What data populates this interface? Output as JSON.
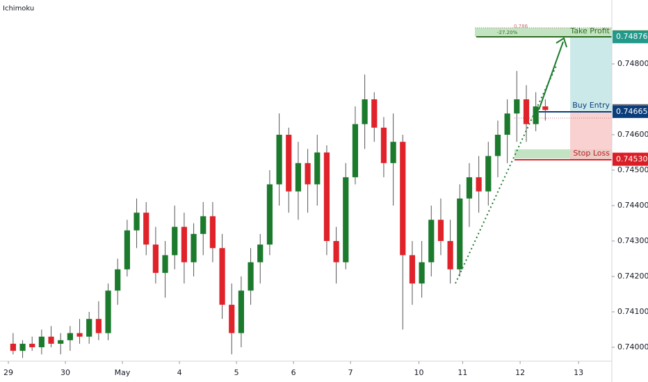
{
  "chart_data": {
    "type": "candlestick",
    "indicator": "Ichimoku",
    "up_color": "#1b7a2c",
    "down_color": "#e0232b",
    "xlim": [
      -0.88,
      63.5
    ],
    "ylim": [
      0.739608,
      0.749804
    ],
    "xticks": [
      {
        "value": 0,
        "label": "29"
      },
      {
        "value": 6,
        "label": "30"
      },
      {
        "value": 12,
        "label": "May"
      },
      {
        "value": 18,
        "label": "4"
      },
      {
        "value": 24,
        "label": "5"
      },
      {
        "value": 30,
        "label": "6"
      },
      {
        "value": 36,
        "label": "7"
      },
      {
        "value": 43.2,
        "label": "10"
      },
      {
        "value": 47.8,
        "label": "11"
      },
      {
        "value": 53.85,
        "label": "12"
      },
      {
        "value": 60,
        "label": "13"
      }
    ],
    "yticks": [
      {
        "value": 0.74,
        "label": "0.74000"
      },
      {
        "value": 0.741,
        "label": "0.74100"
      },
      {
        "value": 0.742,
        "label": "0.74200"
      },
      {
        "value": 0.743,
        "label": "0.74300"
      },
      {
        "value": 0.744,
        "label": "0.74400"
      },
      {
        "value": 0.745,
        "label": "0.74500"
      },
      {
        "value": 0.746,
        "label": "0.74600"
      },
      {
        "value": 0.748,
        "label": "0.74800"
      }
    ],
    "price_labels": [
      {
        "value": 0.74877,
        "label": "0.74877",
        "color": "#336e1f"
      },
      {
        "value": 0.74876,
        "label": "0.74876",
        "color": "#22998a"
      },
      {
        "value": 0.74669,
        "label": "0.74669",
        "color": "#787b86"
      },
      {
        "value": 0.74665,
        "label": "0.74665",
        "color": "#0a3d7a"
      },
      {
        "value": 0.74532,
        "label": "0.74532",
        "color": "#f23645"
      },
      {
        "value": 0.7453,
        "label": "0.74530",
        "color": "#d91e26"
      }
    ],
    "annotations": {
      "take_profit": "Take Profit",
      "buy_entry": "Buy Entry",
      "stop_loss": "Stop Loss",
      "fib_level": "0.786",
      "fib_percent": "-27.20%"
    },
    "x": [
      0.5,
      1.5,
      2.5,
      3.5,
      4.5,
      5.5,
      6.5,
      7.5,
      8.5,
      9.5,
      10.5,
      11.5,
      12.5,
      13.5,
      14.5,
      15.5,
      16.5,
      17.5,
      18.5,
      19.5,
      20.5,
      21.5,
      22.5,
      23.5,
      24.5,
      25.5,
      26.5,
      27.5,
      28.5,
      29.5,
      30.5,
      31.5,
      32.5,
      33.5,
      34.5,
      35.5,
      36.5,
      37.5,
      38.5,
      39.5,
      40.5,
      41.5,
      42.5,
      43.5,
      44.5,
      45.5,
      46.5,
      47.5,
      48.5,
      49.5,
      50.5,
      51.5,
      52.5,
      53.5,
      54.5,
      55.5,
      56.5
    ],
    "open": [
      0.7401,
      0.7399,
      0.7401,
      0.74,
      0.7403,
      0.7401,
      0.7402,
      0.7404,
      0.7403,
      0.7408,
      0.7404,
      0.7416,
      0.7422,
      0.7433,
      0.7438,
      0.7429,
      0.7421,
      0.7426,
      0.7434,
      0.7424,
      0.7432,
      0.7437,
      0.7428,
      0.7412,
      0.7404,
      0.7416,
      0.7424,
      0.7429,
      0.7446,
      0.746,
      0.7444,
      0.7452,
      0.7446,
      0.7455,
      0.743,
      0.7424,
      0.7448,
      0.7463,
      0.747,
      0.7462,
      0.7452,
      0.7458,
      0.7426,
      0.7418,
      0.7424,
      0.7436,
      0.743,
      0.7422,
      0.7442,
      0.7448,
      0.7444,
      0.7454,
      0.746,
      0.7466,
      0.747,
      0.7463,
      0.7468
    ],
    "high": [
      0.7404,
      0.7402,
      0.7403,
      0.7405,
      0.7406,
      0.7404,
      0.7406,
      0.7408,
      0.741,
      0.7413,
      0.7418,
      0.7425,
      0.7436,
      0.7442,
      0.7441,
      0.7434,
      0.743,
      0.744,
      0.7438,
      0.7435,
      0.7441,
      0.7441,
      0.7432,
      0.7418,
      0.742,
      0.7428,
      0.7432,
      0.745,
      0.7466,
      0.7462,
      0.7458,
      0.7456,
      0.746,
      0.7457,
      0.7434,
      0.7452,
      0.7468,
      0.7477,
      0.7472,
      0.7465,
      0.7466,
      0.746,
      0.743,
      0.743,
      0.744,
      0.7442,
      0.7436,
      0.7446,
      0.7452,
      0.7454,
      0.7458,
      0.7464,
      0.747,
      0.7478,
      0.7474,
      0.7472,
      0.747
    ],
    "low": [
      0.7398,
      0.7397,
      0.7399,
      0.7398,
      0.74,
      0.7398,
      0.7399,
      0.7401,
      0.7401,
      0.7402,
      0.7402,
      0.7412,
      0.742,
      0.7428,
      0.7426,
      0.7418,
      0.7414,
      0.7422,
      0.7418,
      0.742,
      0.7426,
      0.7424,
      0.7408,
      0.7398,
      0.74,
      0.7412,
      0.7418,
      0.7426,
      0.744,
      0.7438,
      0.7436,
      0.7438,
      0.744,
      0.7426,
      0.7418,
      0.7422,
      0.7446,
      0.7456,
      0.7458,
      0.7448,
      0.744,
      0.7405,
      0.7412,
      0.7414,
      0.742,
      0.7426,
      0.7418,
      0.742,
      0.7434,
      0.7438,
      0.744,
      0.7448,
      0.7452,
      0.7458,
      0.7458,
      0.7461,
      0.7464
    ],
    "close": [
      0.7399,
      0.7401,
      0.74,
      0.7403,
      0.7401,
      0.7402,
      0.7404,
      0.7403,
      0.7408,
      0.7404,
      0.7416,
      0.7422,
      0.7433,
      0.7438,
      0.7429,
      0.7421,
      0.7426,
      0.7434,
      0.7424,
      0.7432,
      0.7437,
      0.7428,
      0.7412,
      0.7404,
      0.7416,
      0.7424,
      0.7429,
      0.7446,
      0.746,
      0.7444,
      0.7452,
      0.7446,
      0.7455,
      0.743,
      0.7424,
      0.7448,
      0.7463,
      0.747,
      0.7462,
      0.7452,
      0.7458,
      0.7426,
      0.7418,
      0.7424,
      0.7436,
      0.743,
      0.7422,
      0.7442,
      0.7448,
      0.7444,
      0.7454,
      0.746,
      0.7466,
      0.747,
      0.7463,
      0.7468,
      0.7467
    ]
  }
}
